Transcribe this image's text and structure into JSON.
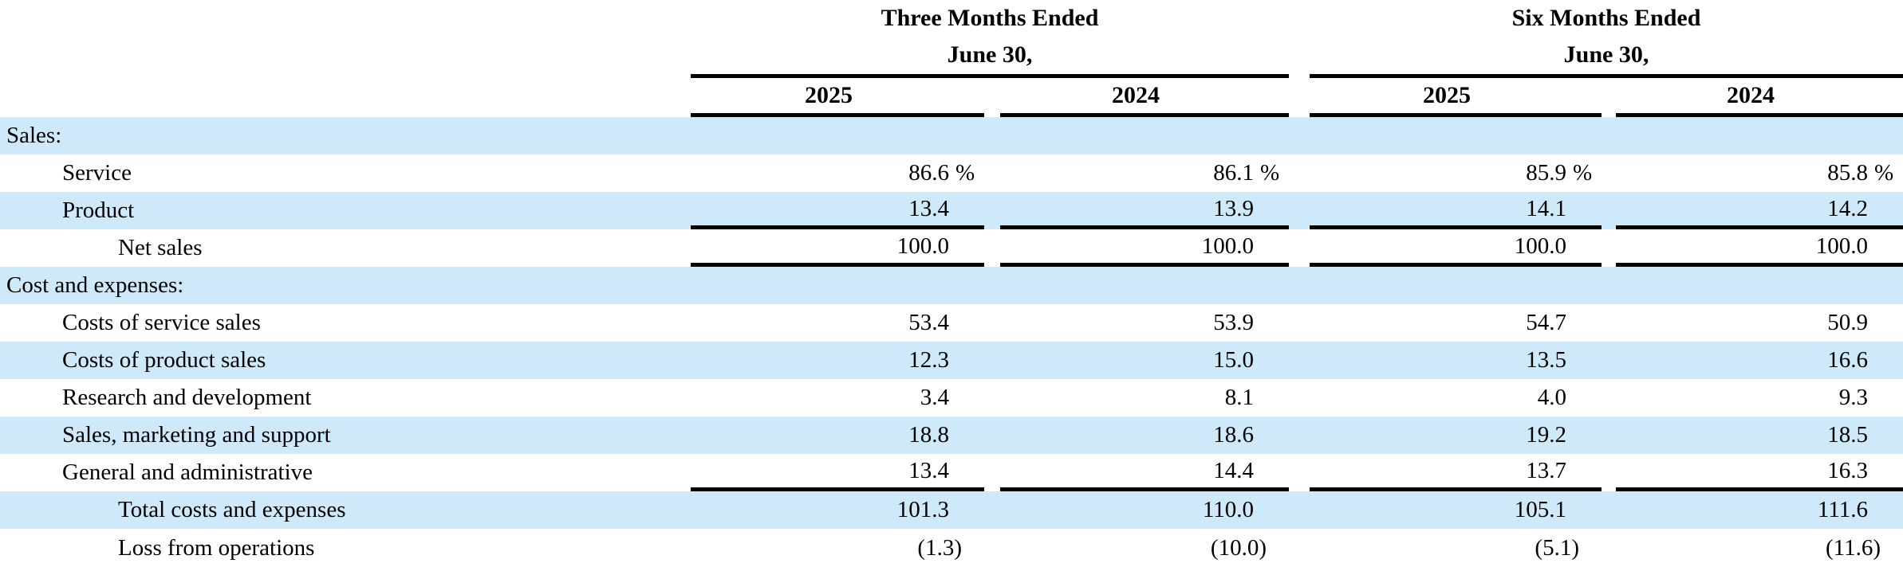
{
  "header": {
    "group1": {
      "line1": "Three Months Ended",
      "line2": "June 30,"
    },
    "group2": {
      "line1": "Six Months Ended",
      "line2": "June 30,"
    },
    "years": [
      "2025",
      "2024",
      "2025",
      "2024"
    ]
  },
  "colors": {
    "row_highlight": "#cde9fa",
    "rule_line": "#000000",
    "text": "#000000"
  },
  "rows": [
    {
      "label": "Sales:",
      "values": [
        "",
        "",
        "",
        ""
      ],
      "unit": ""
    },
    {
      "label": "Service",
      "values": [
        "86.6",
        "86.1",
        "85.9",
        "85.8"
      ],
      "unit": "%"
    },
    {
      "label": "Product",
      "values": [
        "13.4",
        "13.9",
        "14.1",
        "14.2"
      ],
      "unit": ""
    },
    {
      "label": "Net sales",
      "values": [
        "100.0",
        "100.0",
        "100.0",
        "100.0"
      ],
      "unit": ""
    },
    {
      "label": "Cost and expenses:",
      "values": [
        "",
        "",
        "",
        ""
      ],
      "unit": ""
    },
    {
      "label": "Costs of service sales",
      "values": [
        "53.4",
        "53.9",
        "54.7",
        "50.9"
      ],
      "unit": ""
    },
    {
      "label": "Costs of product sales",
      "values": [
        "12.3",
        "15.0",
        "13.5",
        "16.6"
      ],
      "unit": ""
    },
    {
      "label": "Research and development",
      "values": [
        "3.4",
        "8.1",
        "4.0",
        "9.3"
      ],
      "unit": ""
    },
    {
      "label": "Sales, marketing and support",
      "values": [
        "18.8",
        "18.6",
        "19.2",
        "18.5"
      ],
      "unit": ""
    },
    {
      "label": "General and administrative",
      "values": [
        "13.4",
        "14.4",
        "13.7",
        "16.3"
      ],
      "unit": ""
    },
    {
      "label": "Total costs and expenses",
      "values": [
        "101.3",
        "110.0",
        "105.1",
        "111.6"
      ],
      "unit": ""
    },
    {
      "label": "Loss from operations",
      "values": [
        "(1.3)",
        "(10.0)",
        "(5.1)",
        "(11.6)"
      ],
      "unit": ""
    }
  ]
}
